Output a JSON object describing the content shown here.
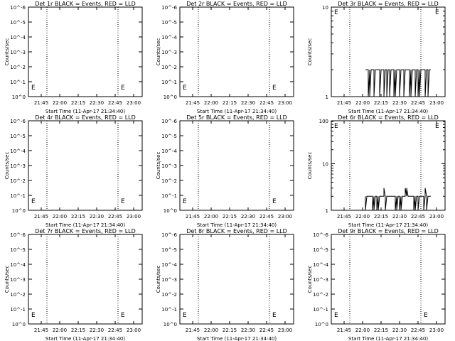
{
  "chart_data": [
    {
      "type": "line",
      "title": "Det 1r BLACK = Events, RED = LLD",
      "xlabel": "Start Time (11-Apr-17 21:34:40)",
      "ylabel": "Counts/sec",
      "scale": "log",
      "ytick_labels": [
        "10^0",
        "10^-1",
        "10^-2",
        "10^-3",
        "10^-4",
        "10^-5",
        "10^-6"
      ],
      "xtick_labels": [
        "21:45",
        "22:00",
        "22:15",
        "22:30",
        "22:45",
        "23:00"
      ],
      "markers": [
        "E",
        "E"
      ],
      "dotted_lines": 2,
      "series": [],
      "grid": false
    },
    {
      "type": "line",
      "title": "Det 2r BLACK = Events, RED = LLD",
      "xlabel": "Start Time (11-Apr-17 21:34:40)",
      "ylabel": "Counts/sec",
      "scale": "log",
      "ytick_labels": [
        "10^0",
        "10^-1",
        "10^-2",
        "10^-3",
        "10^-4",
        "10^-5",
        "10^-6"
      ],
      "xtick_labels": [
        "21:45",
        "22:00",
        "22:15",
        "22:30",
        "22:45",
        "23:00"
      ],
      "markers": [
        "E",
        "E"
      ],
      "dotted_lines": 2,
      "series": [],
      "grid": false
    },
    {
      "type": "line",
      "title": "Det 3r BLACK = Events, RED = LLD",
      "xlabel": "Start Time (11-Apr-17 21:34:40)",
      "ylabel": "Counts/sec",
      "scale": "log",
      "ytick_labels": [
        "1",
        "10"
      ],
      "xtick_labels": [
        "21:45",
        "22:00",
        "22:15",
        "22:30",
        "22:45",
        "23:00"
      ],
      "markers": [
        "E",
        "E"
      ],
      "dotted_lines": 2,
      "series": [
        {
          "color": "#000000",
          "level": 2,
          "min": 1,
          "max": 2
        }
      ],
      "grid": false
    },
    {
      "type": "line",
      "title": "Det 4r BLACK = Events, RED = LLD",
      "xlabel": "Start Time (11-Apr-17 21:34:40)",
      "ylabel": "Counts/sec",
      "scale": "log",
      "ytick_labels": [
        "10^0",
        "10^-1",
        "10^-2",
        "10^-3",
        "10^-4",
        "10^-5",
        "10^-6"
      ],
      "xtick_labels": [
        "21:45",
        "22:00",
        "22:15",
        "22:30",
        "22:45",
        "23:00"
      ],
      "markers": [
        "E",
        "E"
      ],
      "dotted_lines": 2,
      "series": [],
      "grid": false
    },
    {
      "type": "line",
      "title": "Det 5r BLACK = Events, RED = LLD",
      "xlabel": "Start Time (11-Apr-17 21:34:40)",
      "ylabel": "Counts/sec",
      "scale": "log",
      "ytick_labels": [
        "10^0",
        "10^-1",
        "10^-2",
        "10^-3",
        "10^-4",
        "10^-5",
        "10^-6"
      ],
      "xtick_labels": [
        "21:45",
        "22:00",
        "22:15",
        "22:30",
        "22:45",
        "23:00"
      ],
      "markers": [
        "E",
        "E"
      ],
      "dotted_lines": 2,
      "series": [],
      "grid": false
    },
    {
      "type": "line",
      "title": "Det 6r BLACK = Events, RED = LLD",
      "xlabel": "Start Time (11-Apr-17 21:34:40)",
      "ylabel": "Counts/sec",
      "scale": "log",
      "ytick_labels": [
        "1",
        "10",
        "100"
      ],
      "xtick_labels": [
        "21:45",
        "22:00",
        "22:15",
        "22:30",
        "22:45",
        "23:00"
      ],
      "markers": [
        "E",
        "E"
      ],
      "dotted_lines": 2,
      "series": [
        {
          "color": "#000000",
          "level": 2,
          "min": 1,
          "max": 3
        }
      ],
      "grid": false
    },
    {
      "type": "line",
      "title": "Det 7r BLACK = Events, RED = LLD",
      "xlabel": "Start Time (11-Apr-17 21:34:40)",
      "ylabel": "Counts/sec",
      "scale": "log",
      "ytick_labels": [
        "10^0",
        "10^-1",
        "10^-2",
        "10^-3",
        "10^-4",
        "10^-5",
        "10^-6"
      ],
      "xtick_labels": [
        "21:45",
        "22:00",
        "22:15",
        "22:30",
        "22:45",
        "23:00"
      ],
      "markers": [
        "E",
        "E"
      ],
      "dotted_lines": 2,
      "series": [],
      "grid": false
    },
    {
      "type": "line",
      "title": "Det 8r BLACK = Events, RED = LLD",
      "xlabel": "Start Time (11-Apr-17 21:34:40)",
      "ylabel": "Counts/sec",
      "scale": "log",
      "ytick_labels": [
        "10^0",
        "10^-1",
        "10^-2",
        "10^-3",
        "10^-4",
        "10^-5",
        "10^-6"
      ],
      "xtick_labels": [
        "21:45",
        "22:00",
        "22:15",
        "22:30",
        "22:45",
        "23:00"
      ],
      "markers": [
        "E",
        "E"
      ],
      "dotted_lines": 2,
      "series": [],
      "grid": false
    },
    {
      "type": "line",
      "title": "Det 9r BLACK = Events, RED = LLD",
      "xlabel": "Start Time (11-Apr-17 21:34:40)",
      "ylabel": "Counts/sec",
      "scale": "log",
      "ytick_labels": [
        "10^0",
        "10^-1",
        "10^-2",
        "10^-3",
        "10^-4",
        "10^-5",
        "10^-6"
      ],
      "xtick_labels": [
        "21:45",
        "22:00",
        "22:15",
        "22:30",
        "22:45",
        "23:00"
      ],
      "markers": [
        "E",
        "E"
      ],
      "dotted_lines": 2,
      "series": [],
      "grid": false
    }
  ]
}
